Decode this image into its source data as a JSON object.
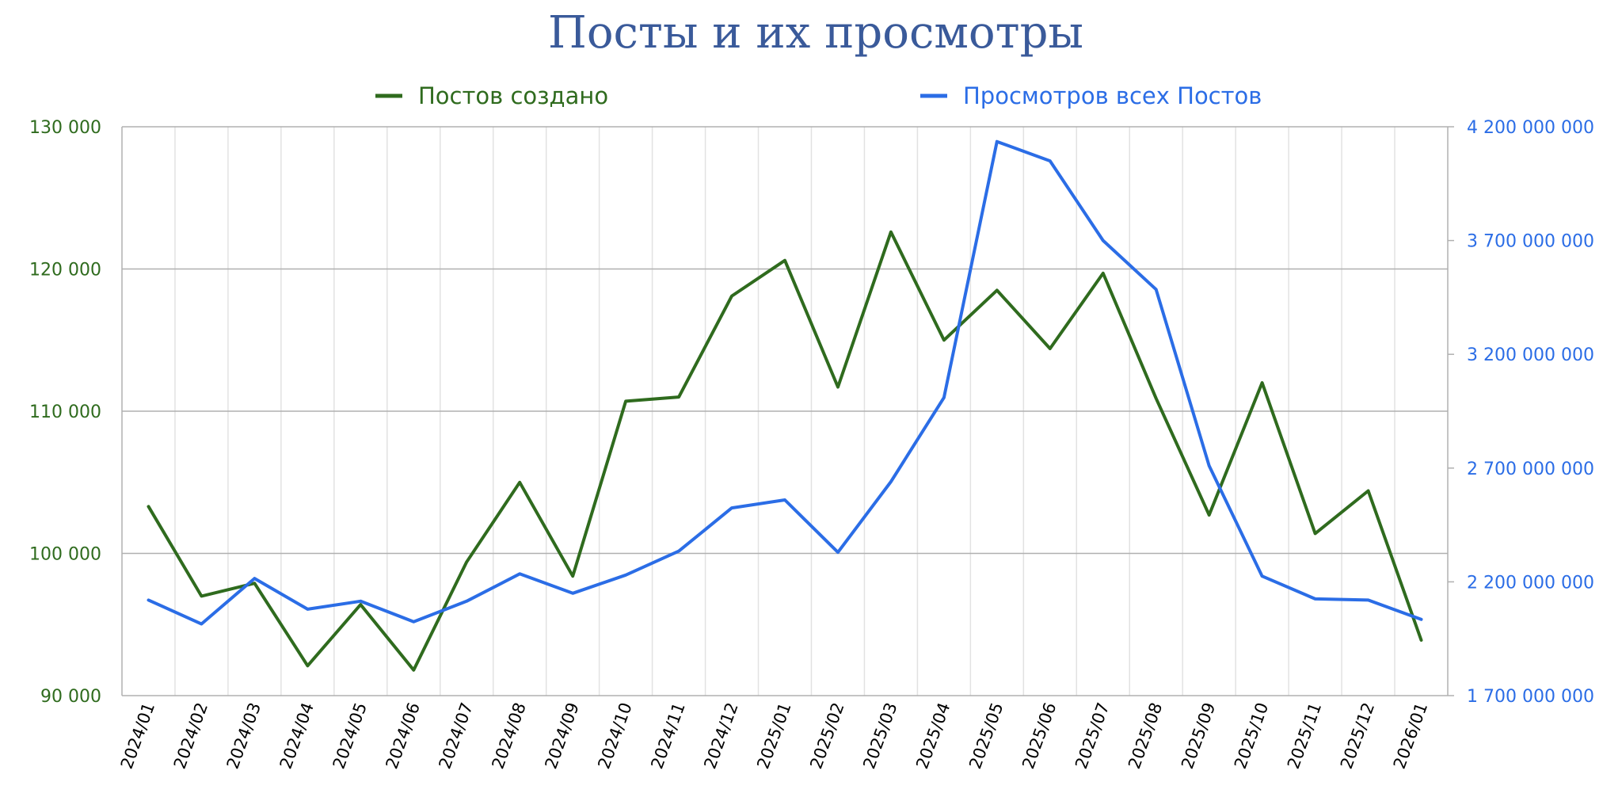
{
  "colors": {
    "title": "#3a5a9a",
    "posts": "#2f6b1e",
    "views": "#2b6de6",
    "grid_major": "#b0b0b0",
    "grid_minor": "#e2e2e2"
  },
  "chart_data": {
    "type": "line",
    "title": "Посты и их просмотры",
    "categories": [
      "2024/01",
      "2024/02",
      "2024/03",
      "2024/04",
      "2024/05",
      "2024/06",
      "2024/07",
      "2024/08",
      "2024/09",
      "2024/10",
      "2024/11",
      "2024/12",
      "2025/01",
      "2025/02",
      "2025/03",
      "2025/04",
      "2025/05",
      "2025/06",
      "2025/07",
      "2025/08",
      "2025/09",
      "2025/10",
      "2025/11",
      "2025/12",
      "2026/01"
    ],
    "series": [
      {
        "name": "Постов создано",
        "axis": "left",
        "values": [
          103300,
          97000,
          97900,
          92100,
          96400,
          91800,
          99400,
          105000,
          98400,
          110700,
          111000,
          118100,
          120600,
          111700,
          122600,
          115000,
          118500,
          114400,
          119700,
          110900,
          102700,
          112000,
          101400,
          104400,
          93900
        ]
      },
      {
        "name": "Просмотров всех Постов",
        "axis": "right",
        "values": [
          2120000000,
          2015000000,
          2215000000,
          2080000000,
          2115000000,
          2025000000,
          2115000000,
          2235000000,
          2150000000,
          2230000000,
          2335000000,
          2525000000,
          2560000000,
          2330000000,
          2640000000,
          3010000000,
          4135000000,
          4050000000,
          3700000000,
          3485000000,
          2710000000,
          2225000000,
          2125000000,
          2120000000,
          2035000000
        ]
      }
    ],
    "y_left": {
      "min": 90000,
      "max": 130000,
      "ticks": [
        90000,
        100000,
        110000,
        120000,
        130000
      ],
      "tick_labels": [
        "90 000",
        "100 000",
        "110 000",
        "120 000",
        "130 000"
      ]
    },
    "y_right": {
      "min": 1700000000,
      "max": 4200000000,
      "ticks": [
        1700000000,
        2200000000,
        2700000000,
        3200000000,
        3700000000,
        4200000000
      ],
      "tick_labels": [
        "1 700 000 000",
        "2 200 000 000",
        "2 700 000 000",
        "3 200 000 000",
        "3 700 000 000",
        "4 200 000 000"
      ]
    },
    "legend": "top-center",
    "grid": true
  }
}
